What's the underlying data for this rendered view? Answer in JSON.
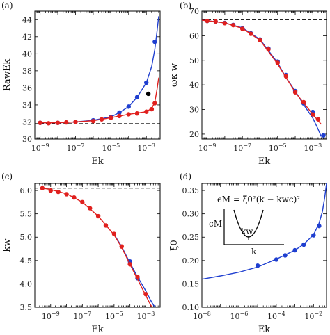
{
  "colors": {
    "blue": "#1f3fd0",
    "red": "#e0201e",
    "black": "#000000"
  },
  "chart_data": [
    {
      "type": "line",
      "panel_label": "(a)",
      "xlabel": "Ek",
      "ylabel": "RawEk",
      "xscale": "log",
      "xlim": [
        5e-10,
        0.006
      ],
      "ylim": [
        30,
        45
      ],
      "xticks": [
        1e-09,
        1e-07,
        1e-05,
        0.001
      ],
      "xticklabels": [
        "10−9",
        "10−7",
        "10−5",
        "10−3"
      ],
      "yticks": [
        30,
        32,
        34,
        36,
        38,
        40,
        42,
        44
      ],
      "yticklabels": [
        "30",
        "32",
        "34",
        "36",
        "38",
        "40",
        "42",
        "44"
      ],
      "hline": 31.8,
      "series": [
        {
          "color": "blue",
          "line": [
            [
              1e-09,
              31.9
            ],
            [
              1e-08,
              31.9
            ],
            [
              1e-07,
              32.0
            ],
            [
              1e-06,
              32.2
            ],
            [
              1e-05,
              32.6
            ],
            [
              3e-05,
              33.1
            ],
            [
              0.0001,
              33.8
            ],
            [
              0.0003,
              34.9
            ],
            [
              0.001,
              36.6
            ],
            [
              0.002,
              38.5
            ],
            [
              0.003,
              40.5
            ],
            [
              0.004,
              42.6
            ],
            [
              0.005,
              44.4
            ]
          ],
          "points": [
            [
              1e-09,
              31.9
            ],
            [
              1e-08,
              31.9
            ],
            [
              1e-07,
              32.0
            ],
            [
              1e-06,
              32.2
            ],
            [
              1e-05,
              32.6
            ],
            [
              3e-05,
              33.1
            ],
            [
              0.0001,
              33.8
            ],
            [
              0.0003,
              34.9
            ],
            [
              0.001,
              36.6
            ],
            [
              0.003,
              41.4
            ]
          ]
        },
        {
          "color": "red",
          "line": [
            [
              1e-09,
              31.9
            ],
            [
              1e-08,
              31.9
            ],
            [
              1e-07,
              32.0
            ],
            [
              1e-06,
              32.15
            ],
            [
              1e-05,
              32.5
            ],
            [
              0.0001,
              32.9
            ],
            [
              0.001,
              33.2
            ],
            [
              0.002,
              33.6
            ],
            [
              0.003,
              34.3
            ],
            [
              0.004,
              35.8
            ],
            [
              0.005,
              37.2
            ]
          ],
          "points": [
            [
              1e-09,
              31.9
            ],
            [
              3e-09,
              31.85
            ],
            [
              1e-08,
              31.9
            ],
            [
              3e-08,
              31.95
            ],
            [
              1e-07,
              32.0
            ],
            [
              1e-06,
              32.1
            ],
            [
              3e-06,
              32.3
            ],
            [
              1e-05,
              32.5
            ],
            [
              3e-05,
              32.7
            ],
            [
              0.0001,
              32.9
            ],
            [
              0.0003,
              33.0
            ],
            [
              0.001,
              33.2
            ],
            [
              0.002,
              33.5
            ],
            [
              0.003,
              34.2
            ]
          ]
        },
        {
          "color": "black",
          "points": [
            [
              0.0013,
              35.3
            ]
          ]
        }
      ]
    },
    {
      "type": "line",
      "panel_label": "(b)",
      "xlabel": "Ek",
      "ylabel": "ωκ w",
      "xscale": "log",
      "xlim": [
        5e-10,
        0.006
      ],
      "ylim": [
        18,
        70
      ],
      "xticks": [
        1e-09,
        1e-07,
        1e-05,
        0.001
      ],
      "xticklabels": [
        "10−9",
        "10−7",
        "10−5",
        "10−3"
      ],
      "yticks": [
        20,
        30,
        40,
        50,
        60,
        70
      ],
      "yticklabels": [
        "20",
        "30",
        "40",
        "50",
        "60",
        "70"
      ],
      "hline": 66.5,
      "series": [
        {
          "color": "blue",
          "line": [
            [
              5e-10,
              66.3
            ],
            [
              1e-09,
              66.1
            ],
            [
              1e-08,
              65.2
            ],
            [
              1e-07,
              63.2
            ],
            [
              1e-06,
              58.5
            ],
            [
              1e-05,
              49.0
            ],
            [
              3e-05,
              43.0
            ],
            [
              0.0001,
              37.5
            ],
            [
              0.0003,
              32.0
            ],
            [
              0.001,
              26.5
            ],
            [
              0.002,
              22.0
            ],
            [
              0.003,
              19.0
            ]
          ],
          "points": [
            [
              1e-09,
              66.0
            ],
            [
              3e-09,
              65.8
            ],
            [
              1e-08,
              65.2
            ],
            [
              3e-08,
              64.4
            ],
            [
              1e-07,
              63.0
            ],
            [
              3e-07,
              61.0
            ],
            [
              1e-06,
              58.5
            ],
            [
              3e-06,
              54.8
            ],
            [
              1e-05,
              49.5
            ],
            [
              3e-05,
              44.0
            ],
            [
              0.0001,
              37.5
            ],
            [
              0.0003,
              32.5
            ],
            [
              0.001,
              29.0
            ],
            [
              0.004,
              19.5
            ]
          ]
        },
        {
          "color": "red",
          "line": [
            [
              5e-10,
              66.3
            ],
            [
              1e-09,
              66.1
            ],
            [
              1e-08,
              65.2
            ],
            [
              1e-07,
              63.0
            ],
            [
              1e-06,
              58.2
            ],
            [
              1e-05,
              48.5
            ],
            [
              0.0001,
              37.0
            ],
            [
              0.001,
              28.0
            ],
            [
              0.003,
              24.0
            ]
          ],
          "points": [
            [
              1e-09,
              66.0
            ],
            [
              3e-09,
              65.8
            ],
            [
              1e-08,
              65.1
            ],
            [
              3e-08,
              64.3
            ],
            [
              1e-07,
              62.8
            ],
            [
              3e-07,
              60.8
            ],
            [
              1e-06,
              58.2
            ],
            [
              3e-06,
              54.5
            ],
            [
              1e-05,
              49.0
            ],
            [
              3e-05,
              43.5
            ],
            [
              0.0001,
              37.0
            ],
            [
              0.0003,
              33.0
            ],
            [
              0.001,
              28.0
            ],
            [
              0.002,
              26.0
            ]
          ]
        }
      ]
    },
    {
      "type": "line",
      "panel_label": "(c)",
      "xlabel": "Ek",
      "ylabel": "kw",
      "xscale": "log",
      "xlim": [
        1e-10,
        0.008
      ],
      "ylim": [
        3.5,
        6.15
      ],
      "xticks": [
        1e-09,
        1e-07,
        1e-05,
        0.001
      ],
      "xticklabels": [
        "10−9",
        "10−7",
        "10−5",
        "10−3"
      ],
      "yticks": [
        3.5,
        4.0,
        4.5,
        5.0,
        5.5,
        6.0
      ],
      "yticklabels": [
        "3.5",
        "4.0",
        "4.5",
        "5.0",
        "5.5",
        "6.0"
      ],
      "hline": 6.05,
      "series": [
        {
          "color": "blue",
          "line": [
            [
              1e-05,
              5.06
            ],
            [
              3e-05,
              4.8
            ],
            [
              0.0001,
              4.45
            ],
            [
              0.0003,
              4.15
            ],
            [
              0.001,
              3.85
            ],
            [
              0.002,
              3.65
            ],
            [
              0.003,
              3.55
            ],
            [
              0.004,
              3.5
            ]
          ],
          "points": [
            [
              0.0001,
              4.48
            ],
            [
              0.0003,
              4.12
            ]
          ]
        },
        {
          "color": "red",
          "line": [
            [
              3e-10,
              6.05
            ],
            [
              1e-09,
              6.02
            ],
            [
              1e-08,
              5.93
            ],
            [
              1e-07,
              5.75
            ],
            [
              1e-06,
              5.45
            ],
            [
              1e-05,
              5.05
            ],
            [
              3e-05,
              4.78
            ],
            [
              0.0001,
              4.42
            ],
            [
              0.0003,
              4.1
            ],
            [
              0.001,
              3.75
            ],
            [
              0.002,
              3.55
            ],
            [
              0.0025,
              3.5
            ]
          ],
          "points": [
            [
              3e-10,
              6.05
            ],
            [
              1e-09,
              6.0
            ],
            [
              3e-09,
              5.97
            ],
            [
              1e-08,
              5.92
            ],
            [
              3e-08,
              5.85
            ],
            [
              1e-07,
              5.75
            ],
            [
              3e-07,
              5.62
            ],
            [
              1e-06,
              5.45
            ],
            [
              3e-06,
              5.25
            ],
            [
              1e-05,
              5.07
            ],
            [
              3e-05,
              4.8
            ],
            [
              0.0001,
              4.42
            ],
            [
              0.0003,
              4.15
            ],
            [
              0.001,
              3.78
            ]
          ]
        }
      ]
    },
    {
      "type": "line",
      "panel_label": "(d)",
      "xlabel": "Ek",
      "ylabel": "ξ0",
      "xscale": "log",
      "xlim": [
        1e-08,
        0.05
      ],
      "ylim": [
        0.1,
        0.365
      ],
      "xticks": [
        1e-08,
        1e-06,
        0.0001,
        0.01
      ],
      "xticklabels": [
        "10−8",
        "10−6",
        "10−4",
        "10−2"
      ],
      "yticks": [
        0.1,
        0.15,
        0.2,
        0.25,
        0.3,
        0.35
      ],
      "yticklabels": [
        "0.10",
        "0.15",
        "0.20",
        "0.25",
        "0.30",
        "0.35"
      ],
      "series": [
        {
          "color": "blue",
          "line": [
            [
              1e-08,
              0.16
            ],
            [
              1e-07,
              0.167
            ],
            [
              1e-06,
              0.175
            ],
            [
              1e-05,
              0.186
            ],
            [
              0.0001,
              0.203
            ],
            [
              0.001,
              0.222
            ],
            [
              0.003,
              0.235
            ],
            [
              0.01,
              0.255
            ],
            [
              0.02,
              0.28
            ],
            [
              0.03,
              0.305
            ],
            [
              0.04,
              0.335
            ],
            [
              0.05,
              0.365
            ]
          ],
          "points": [
            [
              1e-05,
              0.189
            ],
            [
              0.0001,
              0.202
            ],
            [
              0.0003,
              0.211
            ],
            [
              0.001,
              0.222
            ],
            [
              0.003,
              0.234
            ],
            [
              0.01,
              0.254
            ],
            [
              0.02,
              0.274
            ]
          ]
        }
      ],
      "inset": {
        "formula": "ϵM = ξ0²(k − kwc)²",
        "ylabel": "ϵM",
        "xlabel": "k",
        "marker": "kw"
      }
    }
  ]
}
